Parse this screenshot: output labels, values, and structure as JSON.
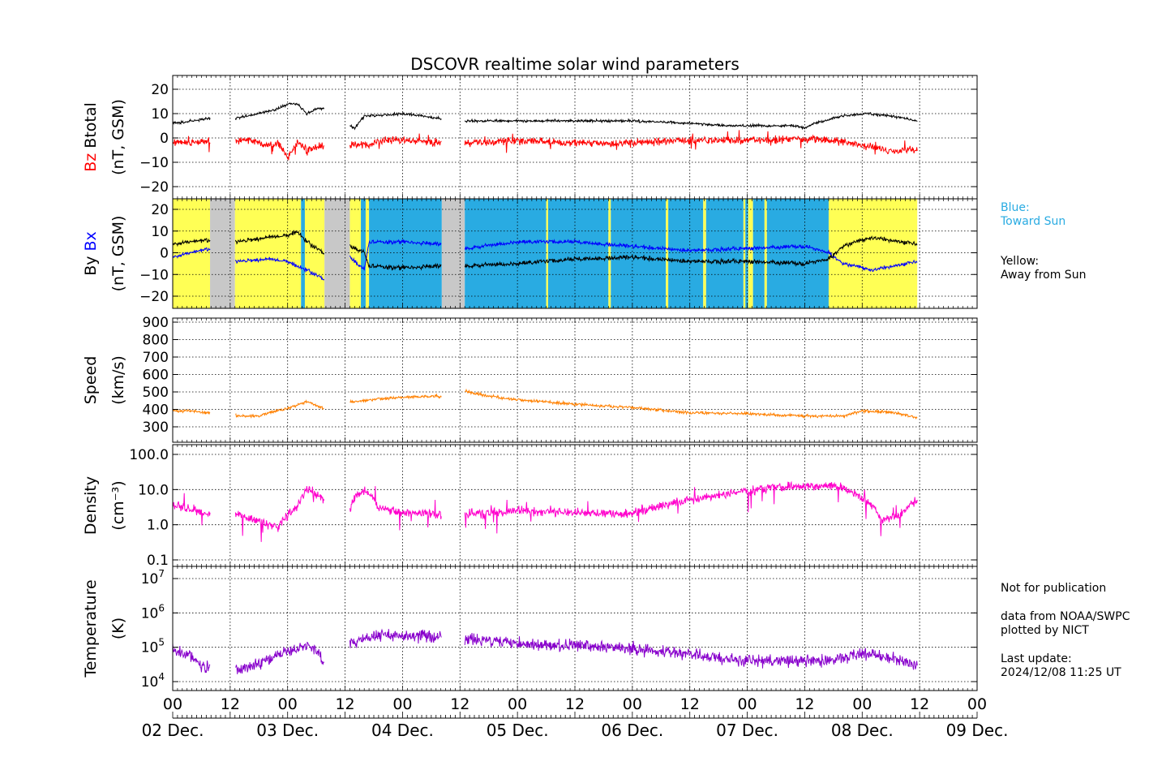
{
  "chart_data": {
    "title": "DSCOVR realtime solar wind parameters",
    "type": "line",
    "x_axis": {
      "tick_labels": [
        "00",
        "12",
        "00",
        "12",
        "00",
        "12",
        "00",
        "12",
        "00",
        "12",
        "00",
        "12",
        "00",
        "12",
        "00"
      ],
      "day_labels": [
        "02 Dec.",
        "03 Dec.",
        "04 Dec.",
        "05 Dec.",
        "06 Dec.",
        "07 Dec.",
        "08 Dec.",
        "09 Dec."
      ],
      "range_hours": [
        0,
        168
      ]
    },
    "panels": [
      {
        "id": "bfield",
        "ylabel_parts": [
          {
            "text": "Bz",
            "color": "#ff0000"
          },
          {
            "text": "Btotal",
            "color": "#000000"
          }
        ],
        "units": "(nT, GSM)",
        "ylim": [
          -25,
          25
        ],
        "yticks": [
          "20",
          "10",
          "0",
          "−10",
          "−20"
        ],
        "series": [
          {
            "name": "Btotal",
            "color": "#000000",
            "kind": "btotal"
          },
          {
            "name": "Bz",
            "color": "#ff0000",
            "kind": "bz"
          }
        ]
      },
      {
        "id": "by",
        "ylabel_parts": [
          {
            "text": "By",
            "color": "#000000"
          },
          {
            "text": "Bx",
            "color": "#0000ff"
          }
        ],
        "units": "(nT, GSM)",
        "ylim": [
          -25,
          25
        ],
        "yticks": [
          "20",
          "10",
          "0",
          "−10",
          "−20"
        ],
        "series": [
          {
            "name": "By",
            "color": "#000000",
            "kind": "by"
          },
          {
            "name": "Bx",
            "color": "#0000ff",
            "kind": "bx"
          }
        ],
        "sector_colors": {
          "toward": "#29abe2",
          "away": "#ffff55",
          "gap": "#c8c8c8"
        },
        "sectors": [
          [
            "away",
            0,
            7.8
          ],
          [
            "gap",
            7.8,
            13
          ],
          [
            "away",
            13,
            26.8
          ],
          [
            "toward",
            26.8,
            27.6
          ],
          [
            "away",
            27.6,
            31.7
          ],
          [
            "gap",
            31.7,
            37
          ],
          [
            "away",
            37,
            39.3
          ],
          [
            "toward",
            39.3,
            40.3
          ],
          [
            "away",
            40.3,
            41.0
          ],
          [
            "toward",
            41.0,
            56.2
          ],
          [
            "gap",
            56.2,
            61
          ],
          [
            "toward",
            61,
            78
          ],
          [
            "away",
            78,
            78.4
          ],
          [
            "toward",
            78.4,
            91
          ],
          [
            "away",
            91,
            91.5
          ],
          [
            "toward",
            91.5,
            103
          ],
          [
            "away",
            103,
            103.5
          ],
          [
            "toward",
            103.5,
            110.8
          ],
          [
            "away",
            110.8,
            111.4
          ],
          [
            "toward",
            111.4,
            119.2
          ],
          [
            "away",
            119.2,
            119.6
          ],
          [
            "toward",
            119.6,
            120.2
          ],
          [
            "away",
            120.2,
            121.2
          ],
          [
            "toward",
            121.2,
            123.6
          ],
          [
            "away",
            123.6,
            124.1
          ],
          [
            "toward",
            124.1,
            137
          ],
          [
            "away",
            137,
            155.5
          ]
        ]
      },
      {
        "id": "speed",
        "ylabel": "Speed",
        "units": "(km/s)",
        "ylim": [
          220,
          920
        ],
        "yticks": [
          "900",
          "800",
          "700",
          "600",
          "500",
          "400",
          "300"
        ],
        "series": [
          {
            "name": "Speed",
            "color": "#ff8000",
            "kind": "speed"
          }
        ]
      },
      {
        "id": "density",
        "ylabel": "Density",
        "units": "(cm⁻³)",
        "log": true,
        "ylim": [
          0.07,
          300
        ],
        "yticks": [
          "100.0",
          "10.0",
          "1.0",
          "0.1"
        ],
        "series": [
          {
            "name": "Density",
            "color": "#ff00cc",
            "kind": "density"
          }
        ]
      },
      {
        "id": "temperature",
        "ylabel": "Temperature",
        "units": "(K)",
        "log": true,
        "ylim": [
          6000,
          18000000
        ],
        "yticks": [
          "10⁷",
          "10⁶",
          "10⁵",
          "10⁴"
        ],
        "series": [
          {
            "name": "Temperature",
            "color": "#8800cc",
            "kind": "temp"
          }
        ]
      }
    ],
    "data_gaps_hours": [
      [
        7.8,
        13
      ],
      [
        31.7,
        37
      ],
      [
        56.2,
        61
      ]
    ],
    "data_end_hour": 155.5,
    "grid": true
  },
  "legend_notes": {
    "toward_label_1": "Blue:",
    "toward_label_2": "Toward Sun",
    "away_label_1": "Yellow:",
    "away_label_2": "Away from Sun"
  },
  "footer_notes": {
    "publication": "Not for publication",
    "source_1": "data from NOAA/SWPC",
    "source_2": "plotted by NICT",
    "update_label": "Last update:",
    "update_time": "2024/12/08 11:25 UT"
  }
}
